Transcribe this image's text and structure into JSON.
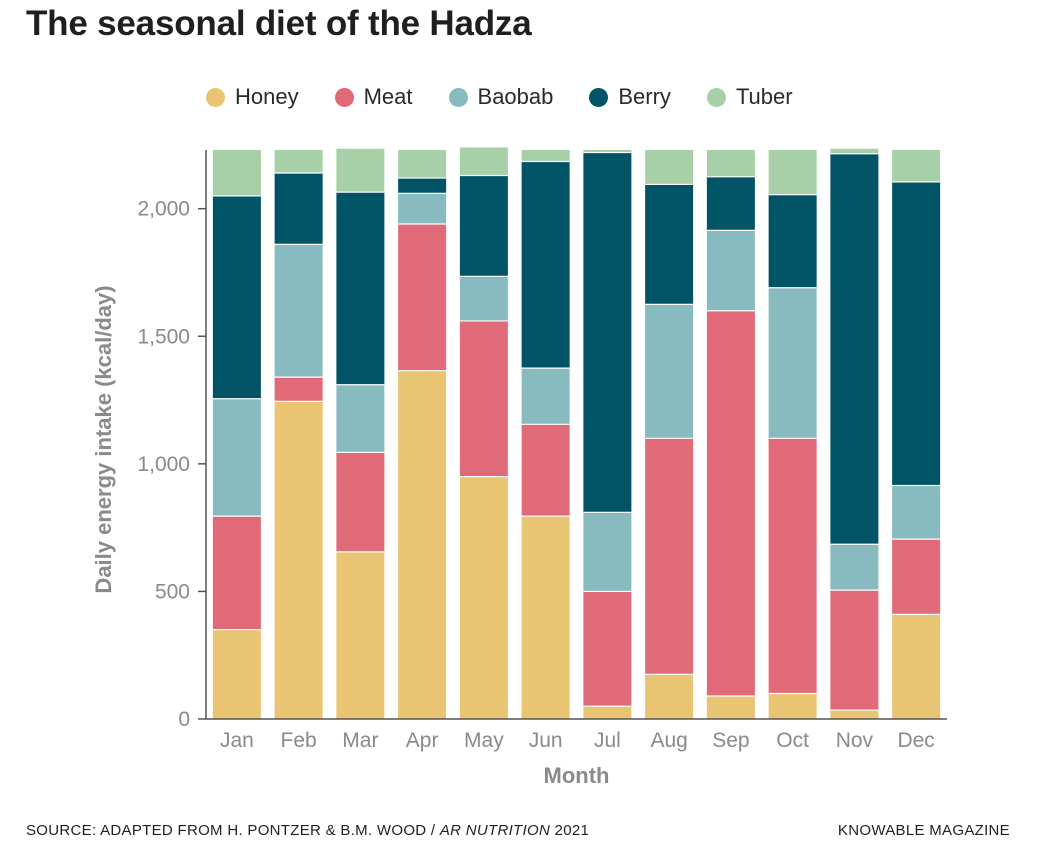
{
  "title": "The seasonal diet of the Hadza",
  "footer": {
    "source_prefix": "SOURCE: ADAPTED FROM H. PONTZER & B.M. WOOD / ",
    "source_publication": "AR NUTRITION",
    "source_year": " 2021",
    "brand": "KNOWABLE MAGAZINE"
  },
  "colors": {
    "Honey": "#e8c473",
    "Meat": "#e06a78",
    "Baobab": "#88bbbf",
    "Berry": "#005466",
    "Tuber": "#a8d0a8"
  },
  "chart_data": {
    "type": "bar",
    "stacked": true,
    "xlabel": "Month",
    "ylabel": "Daily energy intake (kcal/day)",
    "ylim": [
      0,
      2230
    ],
    "yticks": [
      0,
      500,
      1000,
      1500,
      2000
    ],
    "ytick_labels": [
      "0",
      "500",
      "1,000",
      "1,500",
      "2,000"
    ],
    "legend_position": "top",
    "grid": false,
    "categories": [
      "Jan",
      "Feb",
      "Mar",
      "Apr",
      "May",
      "Jun",
      "Jul",
      "Aug",
      "Sep",
      "Oct",
      "Nov",
      "Dec"
    ],
    "series": [
      {
        "name": "Honey",
        "values": [
          350,
          1245,
          655,
          1365,
          950,
          795,
          50,
          175,
          90,
          100,
          35,
          410
        ]
      },
      {
        "name": "Meat",
        "values": [
          445,
          95,
          390,
          575,
          610,
          360,
          450,
          925,
          1510,
          1000,
          470,
          295
        ]
      },
      {
        "name": "Baobab",
        "values": [
          460,
          520,
          265,
          120,
          175,
          220,
          310,
          525,
          315,
          590,
          180,
          210
        ]
      },
      {
        "name": "Berry",
        "values": [
          795,
          280,
          755,
          60,
          395,
          810,
          1410,
          470,
          210,
          365,
          1530,
          1190
        ]
      },
      {
        "name": "Tuber",
        "values": [
          180,
          90,
          170,
          110,
          110,
          45,
          10,
          135,
          105,
          175,
          20,
          125
        ]
      }
    ]
  }
}
